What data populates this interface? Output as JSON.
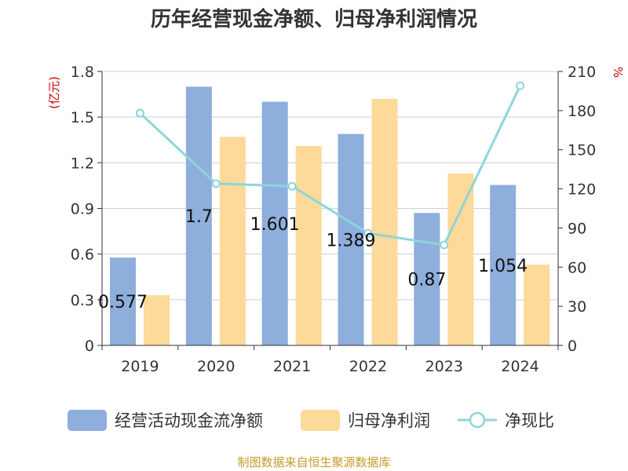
{
  "chart_data": {
    "type": "bar",
    "title": "历年经营现金净额、归母净利润情况",
    "categories": [
      "2019",
      "2020",
      "2021",
      "2022",
      "2023",
      "2024"
    ],
    "series": [
      {
        "name": "经营活动现金流净额",
        "type": "bar",
        "axis": "left",
        "values": [
          0.577,
          1.7,
          1.601,
          1.389,
          0.87,
          1.054
        ],
        "labels": [
          "0.577",
          "1.7",
          "1.601",
          "1.389",
          "0.87",
          "1.054"
        ]
      },
      {
        "name": "归母净利润",
        "type": "bar",
        "axis": "left",
        "values": [
          0.33,
          1.37,
          1.31,
          1.62,
          1.13,
          0.53
        ]
      },
      {
        "name": "净现比",
        "type": "line",
        "axis": "right",
        "values": [
          178,
          124,
          122,
          86,
          77,
          199
        ]
      }
    ],
    "y_left": {
      "label": "(亿元)",
      "min": 0,
      "max": 1.8,
      "ticks": [
        "0",
        "0.3",
        "0.6",
        "0.9",
        "1.2",
        "1.5",
        "1.8"
      ]
    },
    "y_right": {
      "label": "%",
      "min": 0,
      "max": 210,
      "ticks": [
        "0",
        "30",
        "60",
        "90",
        "120",
        "150",
        "180",
        "210"
      ]
    },
    "colors": {
      "bar1": "#8eaedc",
      "bar2": "#fdd99a",
      "line": "#8dd5db"
    },
    "grid": true,
    "legend": "bottom"
  },
  "source": "制图数据来自恒生聚源数据库"
}
